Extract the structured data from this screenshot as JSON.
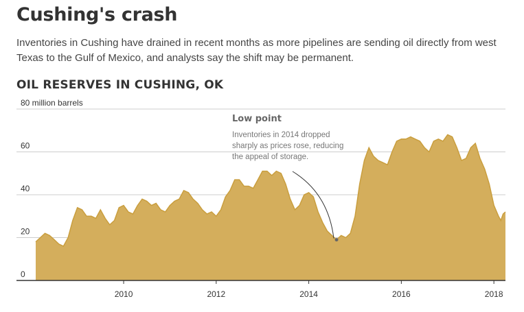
{
  "headline": "Cushing's crash",
  "dek": "Inventories in Cushing have drained in recent months as more pipelines are sending oil directly from west Texas to the Gulf of Mexico, and analysts say the shift may be permanent.",
  "chart_data": {
    "type": "area",
    "title": "OIL RESERVES IN CUSHING, OK",
    "ylabel": "",
    "xlabel": "",
    "y_unit_label": "80 million barrels",
    "ylim": [
      0,
      80
    ],
    "xlim": [
      2008.1,
      2018.25
    ],
    "y_ticks": [
      {
        "value": 0,
        "label": "0"
      },
      {
        "value": 20,
        "label": "20"
      },
      {
        "value": 40,
        "label": "40"
      },
      {
        "value": 60,
        "label": "60"
      },
      {
        "value": 80,
        "label": "80 million barrels"
      }
    ],
    "x_ticks": [
      {
        "value": 2010,
        "label": "2010"
      },
      {
        "value": 2012,
        "label": "2012"
      },
      {
        "value": 2014,
        "label": "2014"
      },
      {
        "value": 2016,
        "label": "2016"
      },
      {
        "value": 2018,
        "label": "2018"
      }
    ],
    "grid": true,
    "color": "#d4ae5c",
    "x": [
      2008.1,
      2008.2,
      2008.3,
      2008.4,
      2008.5,
      2008.6,
      2008.7,
      2008.8,
      2008.9,
      2009.0,
      2009.1,
      2009.2,
      2009.3,
      2009.4,
      2009.5,
      2009.6,
      2009.7,
      2009.8,
      2009.9,
      2010.0,
      2010.1,
      2010.2,
      2010.3,
      2010.4,
      2010.5,
      2010.6,
      2010.7,
      2010.8,
      2010.9,
      2011.0,
      2011.1,
      2011.2,
      2011.3,
      2011.4,
      2011.5,
      2011.6,
      2011.7,
      2011.8,
      2011.9,
      2012.0,
      2012.1,
      2012.2,
      2012.3,
      2012.4,
      2012.5,
      2012.6,
      2012.7,
      2012.8,
      2012.9,
      2013.0,
      2013.1,
      2013.2,
      2013.3,
      2013.4,
      2013.5,
      2013.6,
      2013.7,
      2013.8,
      2013.9,
      2014.0,
      2014.1,
      2014.2,
      2014.3,
      2014.4,
      2014.5,
      2014.6,
      2014.7,
      2014.8,
      2014.9,
      2015.0,
      2015.1,
      2015.2,
      2015.3,
      2015.4,
      2015.5,
      2015.6,
      2015.7,
      2015.8,
      2015.9,
      2016.0,
      2016.1,
      2016.2,
      2016.3,
      2016.4,
      2016.5,
      2016.6,
      2016.7,
      2016.8,
      2016.9,
      2017.0,
      2017.1,
      2017.2,
      2017.3,
      2017.4,
      2017.5,
      2017.6,
      2017.7,
      2017.8,
      2017.9,
      2018.0,
      2018.1,
      2018.15,
      2018.2,
      2018.25
    ],
    "series": [
      {
        "values": [
          18,
          20,
          22,
          21,
          19,
          17,
          16,
          20,
          28,
          34,
          33,
          30,
          30,
          29,
          33,
          29,
          26,
          28,
          34,
          35,
          32,
          31,
          35,
          38,
          37,
          35,
          36,
          33,
          32,
          35,
          37,
          38,
          42,
          41,
          38,
          36,
          33,
          31,
          32,
          30,
          33,
          39,
          42,
          47,
          47,
          44,
          44,
          43,
          47,
          51,
          51,
          49,
          51,
          50,
          45,
          38,
          33,
          35,
          40,
          41,
          39,
          32,
          27,
          23,
          21,
          19,
          21,
          20,
          22,
          30,
          45,
          56,
          62,
          58,
          56,
          55,
          54,
          60,
          65,
          66,
          66,
          67,
          66,
          65,
          62,
          60,
          65,
          66,
          65,
          68,
          67,
          62,
          56,
          57,
          62,
          64,
          57,
          52,
          45,
          35,
          30,
          28,
          31,
          32
        ]
      }
    ],
    "annotations": [
      {
        "title": "Low point",
        "text_lines": [
          "Inventories in 2014 dropped",
          "sharply as prices rose, reducing",
          "the appeal of storage."
        ],
        "target": {
          "x": 2014.6,
          "y": 19
        }
      }
    ]
  }
}
